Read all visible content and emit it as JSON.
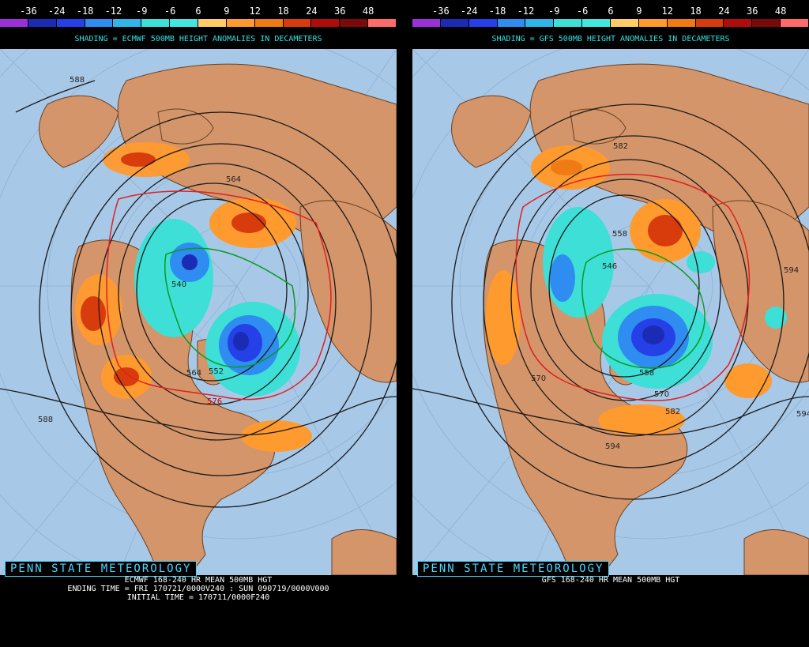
{
  "scale": {
    "labels": [
      "-36",
      "-24",
      "-18",
      "-12",
      "-9",
      "-6",
      "6",
      "9",
      "12",
      "18",
      "24",
      "36",
      "48"
    ],
    "colors": [
      "#9b30d8",
      "#1b2bb4",
      "#2440e6",
      "#2f8cf0",
      "#2fb5e8",
      "#3ddfd6",
      "#42e8e0",
      "#ffcc66",
      "#ff9a2e",
      "#f07a14",
      "#d83b0c",
      "#b00c0c",
      "#7a0a0a",
      "#ff6a6a"
    ]
  },
  "panels": {
    "left": {
      "subtitle": "SHADING = ECMWF 500MB HEIGHT ANOMALIES IN DECAMETERS",
      "credit": "PENN STATE METEOROLOGY",
      "footer_line1": "ECMWF 168-240 HR MEAN 500MB HGT",
      "footer_line2": "ENDING TIME = FRI 170721/0000V240 : SUN 090719/0000V000",
      "footer_line3": "INITIAL TIME = 170711/0000F240",
      "contour_labels": [
        "588",
        "564",
        "540",
        "552",
        "564",
        "576",
        "588"
      ]
    },
    "right": {
      "subtitle": "SHADING = GFS 500MB HEIGHT ANOMALIES IN DECAMETERS",
      "credit": "PENN STATE METEOROLOGY",
      "footer_line1": "GFS 168-240 HR MEAN 500MB HGT",
      "contour_labels": [
        "582",
        "558",
        "546",
        "558",
        "570",
        "570",
        "582",
        "594",
        "594",
        "594"
      ]
    }
  },
  "colors": {
    "ocean": "#a8c8e8",
    "land": "#d4956a",
    "background": "#000000",
    "subtitle": "#33e0e0",
    "credit": "#4cd6ff"
  }
}
